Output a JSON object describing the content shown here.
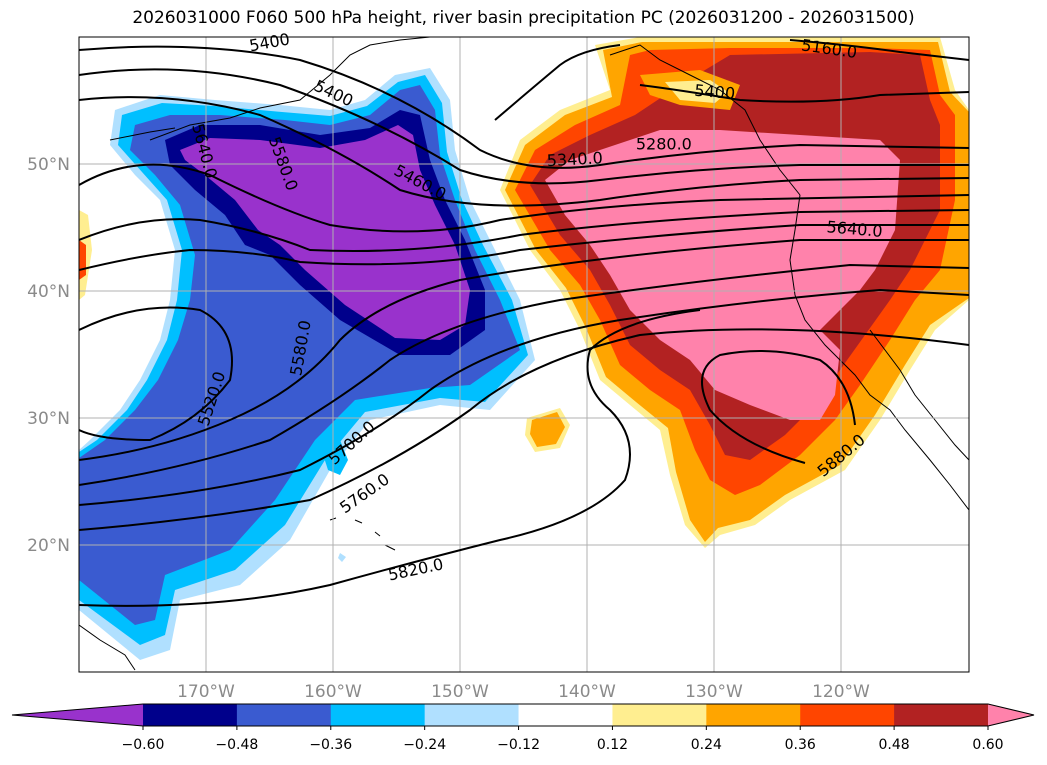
{
  "title": "2026031000 F060 500 hPa height, river basin precipitation PC (2026031200 - 2026031500)",
  "map": {
    "lon_range": [
      -180,
      -110
    ],
    "lat_range": [
      10,
      60
    ],
    "lat_ticks": [
      {
        "value": 20,
        "label": "20°N"
      },
      {
        "value": 30,
        "label": "30°N"
      },
      {
        "value": 40,
        "label": "40°N"
      },
      {
        "value": 50,
        "label": "50°N"
      }
    ],
    "lon_ticks": [
      {
        "value": -170,
        "label": "170°W"
      },
      {
        "value": -160,
        "label": "160°W"
      },
      {
        "value": -150,
        "label": "150°W"
      },
      {
        "value": -140,
        "label": "140°W"
      },
      {
        "value": -130,
        "label": "130°W"
      },
      {
        "value": -120,
        "label": "120°W"
      }
    ],
    "grid_lines": true,
    "grid_color": "#b0b0b0"
  },
  "colorbar": {
    "colors": [
      "#9932cc",
      "#00008b",
      "#3a5bd0",
      "#00bfff",
      "#b0e0ff",
      "#ffffff",
      "#ffee90",
      "#ffa500",
      "#ff4500",
      "#b22222",
      "#ff82ab"
    ],
    "labels": [
      "−0.60",
      "−0.48",
      "−0.36",
      "−0.24",
      "−0.12",
      "0.12",
      "0.24",
      "0.36",
      "0.48",
      "0.60"
    ]
  },
  "contour_labels": [
    {
      "text": "5400",
      "lon": -165.0,
      "lat": 59.5,
      "angle": -10
    },
    {
      "text": "5400",
      "lon": -160.0,
      "lat": 55.5,
      "angle": 25
    },
    {
      "text": "5640.0",
      "lon": -170.2,
      "lat": 51.0,
      "angle": 75
    },
    {
      "text": "5580.0",
      "lon": -164.0,
      "lat": 50.0,
      "angle": 70
    },
    {
      "text": "5460.0",
      "lon": -153.2,
      "lat": 48.5,
      "angle": 28
    },
    {
      "text": "5340.0",
      "lon": -141.0,
      "lat": 50.3,
      "angle": -3
    },
    {
      "text": "5280.0",
      "lon": -134.0,
      "lat": 51.5,
      "angle": 0
    },
    {
      "text": "5160.0",
      "lon": -121.0,
      "lat": 59.0,
      "angle": 8
    },
    {
      "text": "5400",
      "lon": -130.0,
      "lat": 55.6,
      "angle": 5
    },
    {
      "text": "5640.0",
      "lon": -119.0,
      "lat": 44.8,
      "angle": 5
    },
    {
      "text": "5580.0",
      "lon": -162.5,
      "lat": 35.5,
      "angle": -80
    },
    {
      "text": "5520.0",
      "lon": -169.5,
      "lat": 31.5,
      "angle": -72
    },
    {
      "text": "5700.0",
      "lon": -158.5,
      "lat": 28.0,
      "angle": -42
    },
    {
      "text": "5760.0",
      "lon": -157.5,
      "lat": 24.0,
      "angle": -35
    },
    {
      "text": "5820.0",
      "lon": -153.5,
      "lat": 18.0,
      "angle": -12
    },
    {
      "text": "5880.0",
      "lon": -120.0,
      "lat": 27.0,
      "angle": -40
    }
  ]
}
